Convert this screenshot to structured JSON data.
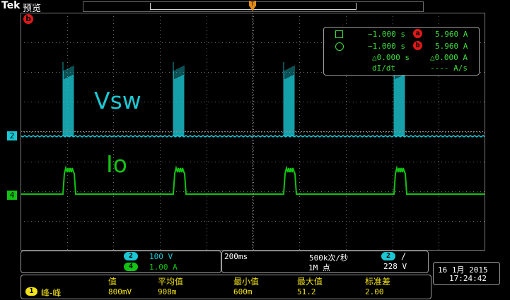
{
  "header": {
    "brand": "Tek",
    "mode": "预览",
    "trigger_marker": "T"
  },
  "colors": {
    "ch2": "#1bc7d2",
    "ch4": "#13c313",
    "ch1": "#f2e21a",
    "grid": "#6e6e6e",
    "cursor_badge": "#e01818",
    "text_yellow": "#e8e23b",
    "text_green": "#3ddc3d"
  },
  "cursor_ref_badge": "b",
  "labels": {
    "vsw": "Vsw",
    "io": "Io"
  },
  "channels": {
    "ch2_marker": "2",
    "ch4_marker": "4"
  },
  "cursor_readout": {
    "row1": {
      "time": "−1.000 s",
      "badge": "a",
      "value": "5.960 A"
    },
    "row2": {
      "time": "−1.000 s",
      "badge": "b",
      "value": "5.960 A"
    },
    "row3": {
      "time": "△0.000 s",
      "value": "△0.000 A"
    },
    "row4": {
      "label": "dI/dt",
      "value": "---- A/s"
    }
  },
  "bottom_left": {
    "ch2_num": "2",
    "ch2_scale": "100 V",
    "ch4_num": "4",
    "ch4_scale": "1.00 A"
  },
  "timebase": {
    "time_div": "200ms",
    "sample_rate": "500k次/秒",
    "record": "1M 点",
    "trig_ch": "2",
    "trig_slope": "/",
    "trig_level": "228 V"
  },
  "datetime": {
    "date": "16 1月 2015",
    "time": "17:24:42"
  },
  "measurements": {
    "ch_num": "1",
    "name": "峰-峰",
    "headers": [
      "值",
      "平均值",
      "最小值",
      "最大值",
      "标准差"
    ],
    "values": [
      "800mV",
      "908m",
      "600m",
      "51.2",
      "2.00"
    ]
  }
}
